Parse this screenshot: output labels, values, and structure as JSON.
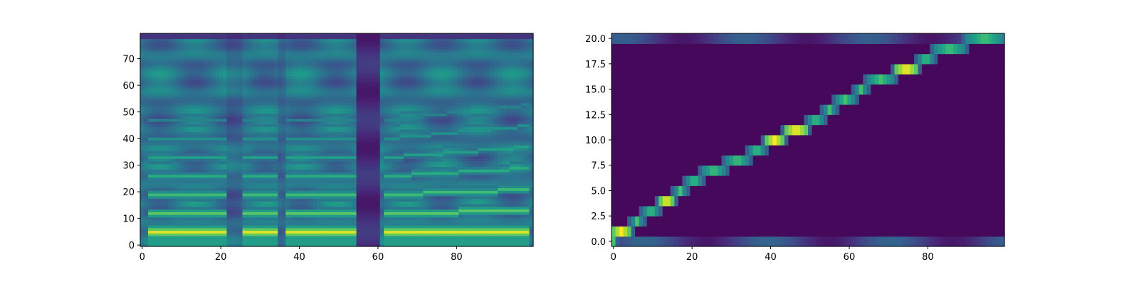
{
  "colors": {
    "viridis_low": "#440154",
    "viridis_mid": "#21918c",
    "viridis_high": "#fde725",
    "axes_frame": "#000000",
    "background": "#ffffff"
  },
  "chart_data": [
    {
      "type": "heatmap",
      "title": "",
      "xlabel": "",
      "ylabel": "",
      "colormap": "viridis",
      "grid": false,
      "xlim": [
        -0.5,
        99.5
      ],
      "ylim": [
        -0.5,
        79.5
      ],
      "x_ticks": [
        0,
        20,
        40,
        60,
        80
      ],
      "x_tick_labels": [
        "0",
        "20",
        "40",
        "60",
        "80"
      ],
      "y_ticks": [
        0,
        10,
        20,
        30,
        40,
        50,
        60,
        70
      ],
      "y_tick_labels": [
        "0",
        "10",
        "20",
        "30",
        "40",
        "50",
        "60",
        "70"
      ],
      "n_frames": 100,
      "n_bins": 80,
      "voiced_segments": [
        [
          2,
          22
        ],
        [
          26,
          35
        ],
        [
          37,
          55
        ],
        [
          62,
          99
        ]
      ],
      "silence_bands": [
        [
          55,
          61
        ]
      ],
      "low_energy_frames": [
        [
          22,
          26
        ],
        [
          35,
          37
        ]
      ],
      "fundamental_bin": 5,
      "harmonic_bins": [
        5,
        12,
        19,
        26,
        33,
        40,
        47
      ],
      "value_range": [
        0,
        1
      ]
    },
    {
      "type": "heatmap",
      "title": "",
      "xlabel": "",
      "ylabel": "",
      "colormap": "viridis",
      "grid": false,
      "xlim": [
        -0.5,
        99.5
      ],
      "ylim": [
        -0.5,
        20.5
      ],
      "x_ticks": [
        0,
        20,
        40,
        60,
        80
      ],
      "x_tick_labels": [
        "0",
        "20",
        "40",
        "60",
        "80"
      ],
      "y_ticks": [
        0.0,
        2.5,
        5.0,
        7.5,
        10.0,
        12.5,
        15.0,
        17.5,
        20.0
      ],
      "y_tick_labels": [
        "0.0",
        "2.5",
        "5.0",
        "7.5",
        "10.0",
        "12.5",
        "15.0",
        "17.5",
        "20.0"
      ],
      "n_decoder_steps": 100,
      "n_encoder_steps": 21,
      "alignment_path": [
        {
          "token": 0,
          "start": 0,
          "end": 0
        },
        {
          "token": 1,
          "start": 0,
          "end": 4
        },
        {
          "token": 2,
          "start": 5,
          "end": 7
        },
        {
          "token": 3,
          "start": 8,
          "end": 11
        },
        {
          "token": 4,
          "start": 12,
          "end": 15
        },
        {
          "token": 5,
          "start": 16,
          "end": 18
        },
        {
          "token": 6,
          "start": 19,
          "end": 22
        },
        {
          "token": 7,
          "start": 23,
          "end": 28
        },
        {
          "token": 8,
          "start": 29,
          "end": 34
        },
        {
          "token": 9,
          "start": 35,
          "end": 38
        },
        {
          "token": 10,
          "start": 39,
          "end": 43
        },
        {
          "token": 11,
          "start": 44,
          "end": 49
        },
        {
          "token": 12,
          "start": 50,
          "end": 53
        },
        {
          "token": 13,
          "start": 54,
          "end": 56
        },
        {
          "token": 14,
          "start": 57,
          "end": 61
        },
        {
          "token": 15,
          "start": 62,
          "end": 64
        },
        {
          "token": 16,
          "start": 65,
          "end": 71
        },
        {
          "token": 17,
          "start": 72,
          "end": 77
        },
        {
          "token": 18,
          "start": 78,
          "end": 81
        },
        {
          "token": 19,
          "start": 82,
          "end": 89
        },
        {
          "token": 20,
          "start": 90,
          "end": 99
        }
      ],
      "peak_tokens": [
        1,
        4,
        10,
        11,
        17
      ],
      "diffuse_rows": [
        {
          "token": 0,
          "value": 0.32
        },
        {
          "token": 20,
          "value": 0.3
        }
      ],
      "value_range": [
        0,
        1
      ]
    }
  ]
}
